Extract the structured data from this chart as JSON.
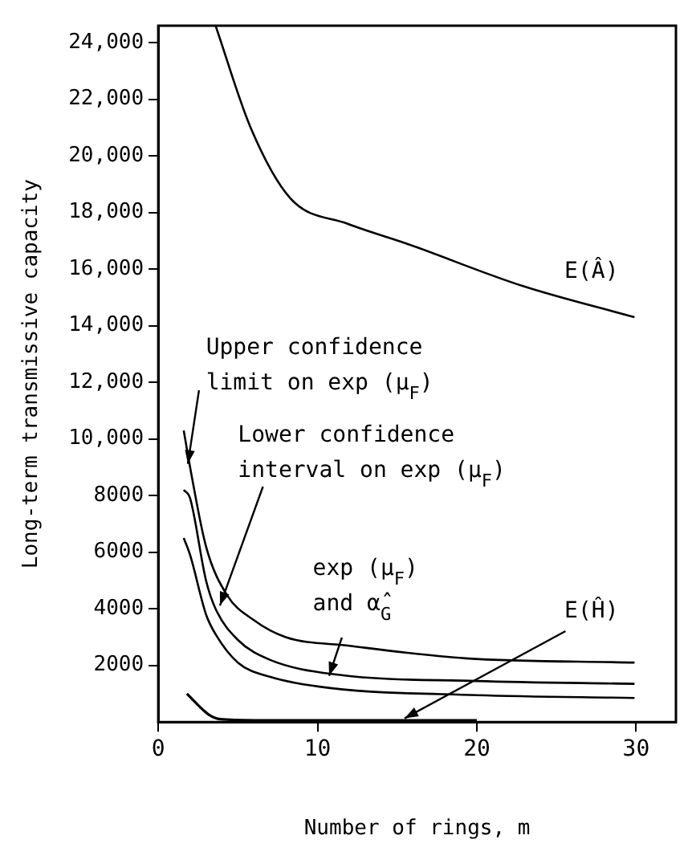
{
  "chart_data": {
    "type": "line",
    "xlabel": "Number of rings, m",
    "ylabel": "Long-term transmissive capacity",
    "xlim": [
      0,
      32.5
    ],
    "xticks": [
      0,
      10,
      20,
      30
    ],
    "ylim": [
      0,
      24600
    ],
    "yticks": [
      {
        "value": 2000,
        "label": "2000"
      },
      {
        "value": 4000,
        "label": "4000"
      },
      {
        "value": 6000,
        "label": "6000"
      },
      {
        "value": 8000,
        "label": "8000"
      },
      {
        "value": 10000,
        "label": "10,000"
      },
      {
        "value": 12000,
        "label": "12,000"
      },
      {
        "value": 14000,
        "label": "14,000"
      },
      {
        "value": 16000,
        "label": "16,000"
      },
      {
        "value": 18000,
        "label": "18,000"
      },
      {
        "value": 20000,
        "label": "20,000"
      },
      {
        "value": 22000,
        "label": "22,000"
      },
      {
        "value": 24000,
        "label": "24,000"
      }
    ],
    "grid": false,
    "legend": false,
    "marker": "none",
    "line_style": "solid",
    "series": [
      {
        "name": "E(Â)",
        "color": "#000000",
        "x": [
          3.6,
          5.8,
          8.3,
          11.9,
          15.6,
          22.9,
          29.9
        ],
        "values": [
          24600,
          21000,
          18500,
          17600,
          16900,
          15400,
          14300
        ]
      },
      {
        "color": "#000000",
        "x": [
          1.6,
          2,
          3,
          4.3,
          6,
          8,
          11.9,
          19.3,
          29.9
        ],
        "values": [
          10300,
          9000,
          6200,
          4500,
          3600,
          3000,
          2700,
          2250,
          2100
        ]
      },
      {
        "color": "#000000",
        "x": [
          1.6,
          2,
          3,
          3.6,
          5,
          7,
          11.3,
          20,
          29.9
        ],
        "values": [
          8200,
          7900,
          5000,
          4000,
          2900,
          2200,
          1670,
          1450,
          1350
        ]
      },
      {
        "color": "#000000",
        "x": [
          1.6,
          2,
          3,
          3.6,
          5,
          7,
          10.8,
          20,
          29.9
        ],
        "values": [
          6500,
          5900,
          3800,
          3100,
          2100,
          1600,
          1200,
          950,
          850
        ]
      },
      {
        "color": "#000000",
        "x": [
          1.8,
          2.5,
          3.2,
          3.9,
          6,
          10,
          15,
          20
        ],
        "values": [
          1000,
          600,
          250,
          100,
          60,
          60,
          60,
          60
        ]
      }
    ],
    "annotations": [
      {
        "text": "Upper confidence limit on exp (μ$_{F}$)",
        "x": 1.9,
        "y": 9100
      },
      {
        "text": "Lower confidence interval on exp (μ$_{F}$)",
        "x": 3.9,
        "y": 4100
      },
      {
        "text": "exp (μ$_{F}$) and α̂$_{G}$",
        "x": 10.7,
        "y": 1650
      },
      {
        "text": "E(Ĥ)",
        "x": 15.5,
        "y": 120
      }
    ]
  }
}
